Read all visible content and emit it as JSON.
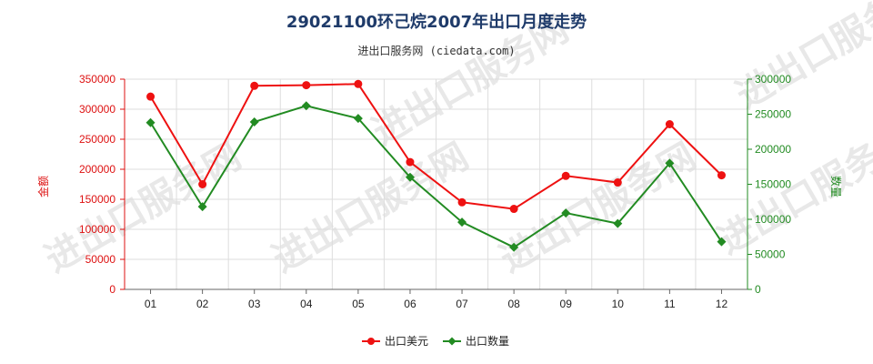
{
  "chart_data": {
    "type": "line",
    "title": "29021100环己烷2007年出口月度走势",
    "subtitle": "进出口服务网 (ciedata.com)",
    "categories": [
      "01",
      "02",
      "03",
      "04",
      "05",
      "06",
      "07",
      "08",
      "09",
      "10",
      "11",
      "12"
    ],
    "y_left": {
      "label": "金额",
      "ylim": [
        0,
        350000
      ],
      "ticks": [
        "0",
        "50000",
        "100000",
        "150000",
        "200000",
        "250000",
        "300000",
        "350000"
      ]
    },
    "y_right": {
      "label": "数量",
      "ylim": [
        0,
        300000
      ],
      "ticks": [
        "0",
        "50000",
        "100000",
        "150000",
        "200000",
        "250000",
        "300000"
      ]
    },
    "series": [
      {
        "name": "出口美元",
        "axis": "left",
        "color": "#ee1111",
        "marker": "circle",
        "values": [
          321000,
          175000,
          339000,
          340000,
          342000,
          212000,
          145000,
          134000,
          189000,
          178000,
          275000,
          190000
        ]
      },
      {
        "name": "出口数量",
        "axis": "right",
        "color": "#228b22",
        "marker": "diamond",
        "values": [
          238000,
          118000,
          239000,
          262000,
          244000,
          160000,
          96000,
          60000,
          109000,
          94000,
          180000,
          68000
        ]
      }
    ],
    "grid": true,
    "legend_position": "bottom-center"
  },
  "watermark": "进出口服务网"
}
